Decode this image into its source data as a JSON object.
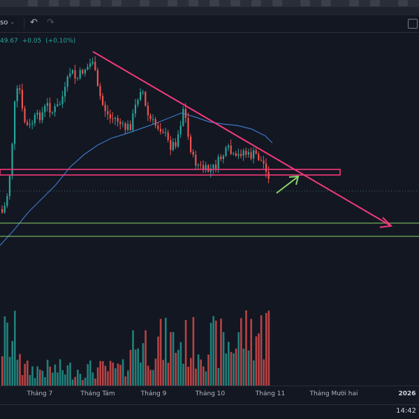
{
  "toolbar": {
    "interval_label": "so",
    "chevron_icon": "chevron-down-icon",
    "undo_icon": "undo-icon",
    "redo_icon": "redo-icon"
  },
  "legend": {
    "last": "49.67",
    "change": "+0.05",
    "change_pct": "(+0.10%)"
  },
  "x_axis": {
    "labels": [
      "Tháng 7",
      "Tháng Tám",
      "Tháng 9",
      "Tháng 10",
      "Tháng 11",
      "Tháng Mười hai",
      "2026"
    ]
  },
  "status": {
    "clock": "14:42"
  },
  "colors": {
    "background": "#131722",
    "up": "#26a69a",
    "down": "#ef5350",
    "trendline": "#f23a7a",
    "support_lines": "#8bd66b",
    "moving_average": "#3a78c4",
    "arrow": "#8bd66b"
  }
}
